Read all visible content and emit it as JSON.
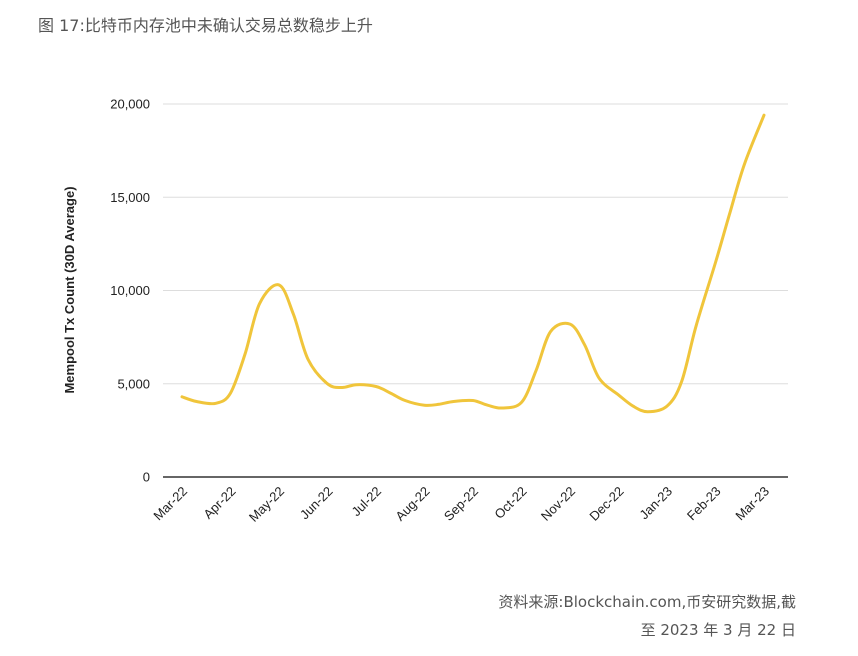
{
  "title": "图 17:比特币内存池中未确认交易总数稳步上升",
  "source": {
    "line1": "资料来源:Blockchain.com,币安研究数据,截",
    "line2": "至 2023 年 3 月 22 日"
  },
  "colors": {
    "line": "#f0c53b",
    "grid": "#dddddd",
    "axis": "#333333"
  },
  "chart_data": {
    "type": "line",
    "title": "",
    "xlabel": "",
    "ylabel": "Mempool Tx Count (30D Average)",
    "ylim": [
      0,
      20000
    ],
    "yticks": [
      0,
      5000,
      10000,
      15000,
      20000
    ],
    "ytick_labels": [
      "0",
      "5,000",
      "10,000",
      "15,000",
      "20,000"
    ],
    "grid": true,
    "categories": [
      "Mar-22",
      "Apr-22",
      "May-22",
      "Jun-22",
      "Jul-22",
      "Aug-22",
      "Sep-22",
      "Oct-22",
      "Nov-22",
      "Dec-22",
      "Jan-23",
      "Feb-23",
      "Mar-23"
    ],
    "series": [
      {
        "x": [
          0,
          0.3,
          0.7,
          1,
          1.3,
          1.6,
          2,
          2.3,
          2.6,
          3,
          3.3,
          3.6,
          4,
          4.3,
          4.6,
          5,
          5.3,
          5.6,
          6,
          6.3,
          6.6,
          7,
          7.3,
          7.6,
          8,
          8.3,
          8.6,
          9,
          9.3,
          9.6,
          10,
          10.3,
          10.6,
          11,
          11.3,
          11.6,
          12
        ],
        "values": [
          4300,
          4050,
          3950,
          4500,
          6600,
          9300,
          10300,
          8700,
          6300,
          5000,
          4800,
          4950,
          4850,
          4500,
          4100,
          3850,
          3900,
          4050,
          4100,
          3850,
          3700,
          4000,
          5700,
          7800,
          8200,
          7100,
          5300,
          4400,
          3800,
          3500,
          3800,
          5100,
          8100,
          11500,
          14200,
          16800,
          19400
        ]
      }
    ]
  }
}
